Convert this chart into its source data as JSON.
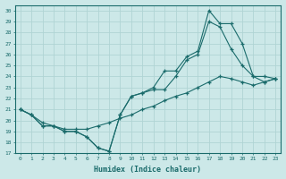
{
  "xlabel": "Humidex (Indice chaleur)",
  "bg_color": "#cce8e8",
  "grid_color": "#b0d4d4",
  "line_color": "#1a6b6b",
  "xlim": [
    -0.5,
    23.5
  ],
  "ylim": [
    17,
    30.5
  ],
  "xticks": [
    0,
    1,
    2,
    3,
    4,
    5,
    6,
    7,
    8,
    9,
    10,
    11,
    12,
    13,
    14,
    15,
    16,
    17,
    18,
    19,
    20,
    21,
    22,
    23
  ],
  "yticks": [
    17,
    18,
    19,
    20,
    21,
    22,
    23,
    24,
    25,
    26,
    27,
    28,
    29,
    30
  ],
  "line1_x": [
    0,
    1,
    2,
    3,
    4,
    5,
    6,
    7,
    8,
    9,
    10,
    11,
    12,
    13,
    14,
    15,
    16,
    17,
    18,
    19,
    20,
    21,
    22,
    23
  ],
  "line1_y": [
    21.0,
    20.5,
    19.5,
    19.5,
    19.0,
    19.0,
    18.5,
    17.5,
    17.2,
    20.5,
    22.2,
    22.5,
    23.0,
    24.5,
    24.5,
    25.8,
    26.3,
    30.0,
    28.8,
    28.8,
    27.0,
    24.0,
    24.0,
    23.8
  ],
  "line2_x": [
    0,
    1,
    2,
    3,
    4,
    5,
    6,
    7,
    8,
    9,
    10,
    11,
    12,
    13,
    14,
    15,
    16,
    17,
    18,
    19,
    20,
    21,
    22,
    23
  ],
  "line2_y": [
    21.0,
    20.5,
    19.5,
    19.5,
    19.0,
    19.0,
    18.5,
    17.5,
    17.2,
    20.5,
    22.2,
    22.5,
    22.8,
    22.8,
    24.0,
    25.5,
    26.0,
    29.0,
    28.5,
    26.5,
    25.0,
    24.0,
    23.5,
    23.8
  ],
  "line3_x": [
    0,
    1,
    2,
    3,
    4,
    5,
    6,
    7,
    8,
    9,
    10,
    11,
    12,
    13,
    14,
    15,
    16,
    17,
    18,
    19,
    20,
    21,
    22,
    23
  ],
  "line3_y": [
    21.0,
    20.5,
    19.8,
    19.5,
    19.2,
    19.2,
    19.2,
    19.5,
    19.8,
    20.2,
    20.5,
    21.0,
    21.3,
    21.8,
    22.2,
    22.5,
    23.0,
    23.5,
    24.0,
    23.8,
    23.5,
    23.2,
    23.5,
    23.8
  ]
}
